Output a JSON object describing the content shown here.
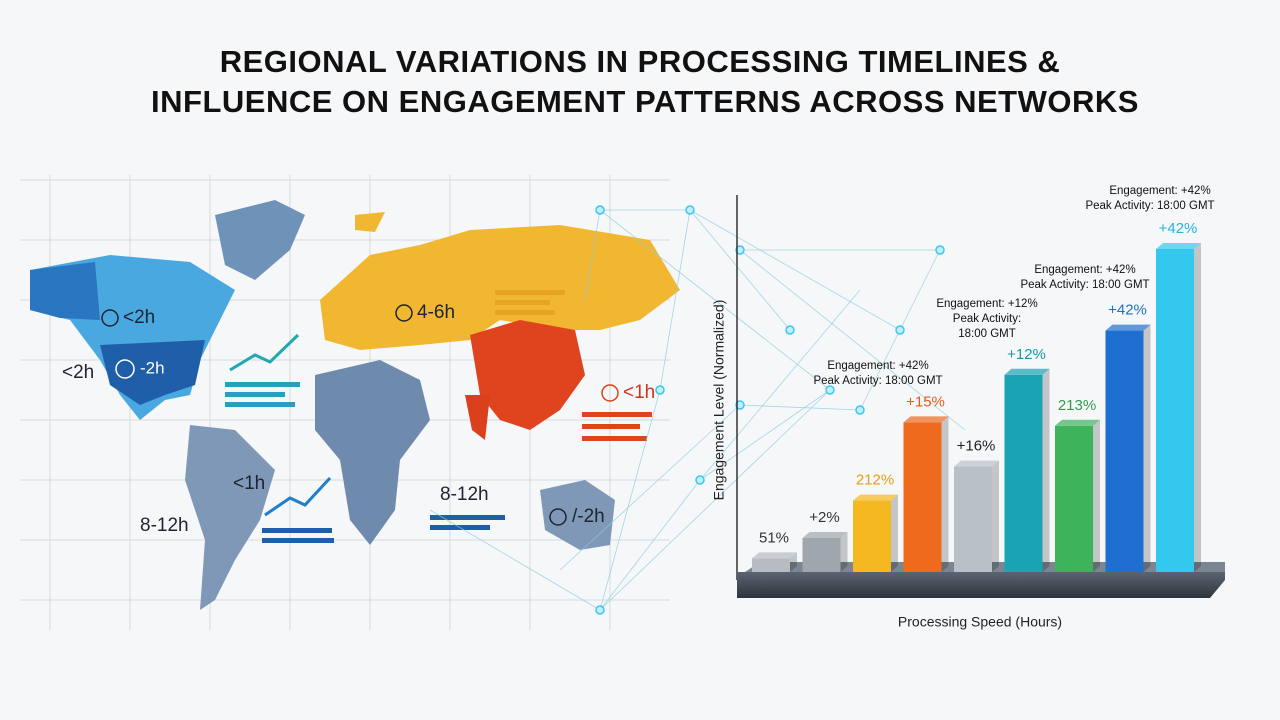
{
  "title_lines": [
    "REGIONAL VARIATIONS IN PROCESSING TIMELINES &",
    "INFLUENCE ON ENGAGEMENT PATTERNS ACROSS NETWORKS"
  ],
  "map": {
    "labels": [
      "<2h",
      "<2h",
      "-2h",
      "4-6h",
      "<1h",
      "<1h",
      "8-12h",
      "8-12h",
      "/-2h"
    ]
  },
  "chart_data": {
    "type": "bar",
    "y_label": "Engagement Level (Normalized)",
    "x_label": "Processing Speed (Hours)",
    "values": [
      0.04,
      0.1,
      0.21,
      0.44,
      0.31,
      0.58,
      0.43,
      0.71,
      0.95
    ],
    "colors": [
      "#b7bcc2",
      "#9fa6ae",
      "#f5b820",
      "#f06a1e",
      "#b9c0c8",
      "#1aa3b3",
      "#3db35c",
      "#1f6fd0",
      "#33c9ef"
    ],
    "annotations": [
      "51%",
      "+2%",
      "212%",
      "+15%",
      "+16%",
      "+12%",
      "213%",
      "+42%",
      "+42%"
    ],
    "annotation_colors": [
      "#333",
      "#333",
      "#e0a010",
      "#e85a1a",
      "#222",
      "#129aa8",
      "#2f9e4a",
      "#1f6fd0",
      "#22b5e0"
    ],
    "ylim": [
      0,
      1
    ],
    "callouts": [
      {
        "lines": [
          "Engagement: +42%",
          "Peak Activity: 18:00 GMT"
        ]
      },
      {
        "lines": [
          "Engagement: +42%",
          "Peak Activity: 18:00 GMT"
        ]
      },
      {
        "lines": [
          "Engagement: +12%",
          "Peak Activity:",
          "18:00 GMT"
        ]
      },
      {
        "lines": [
          "Engagement: +42%",
          "Peak Activity: 18:00 GMT"
        ]
      }
    ]
  }
}
